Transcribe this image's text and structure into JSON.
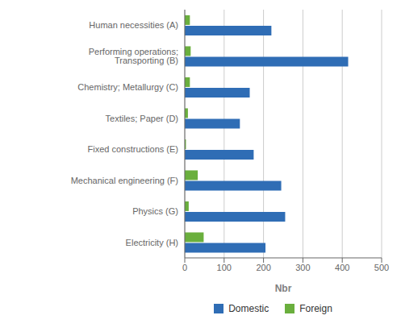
{
  "chart_data": {
    "type": "bar",
    "orientation": "horizontal",
    "categories": [
      "Human necessities (A)",
      "Performing operations; Transporting (B)",
      "Chemistry; Metallurgy  (C)",
      "Textiles; Paper (D)",
      "Fixed constructions (E)",
      "Mechanical engineering (F)",
      "Physics (G)",
      "Electricity (H)"
    ],
    "series": [
      {
        "name": "Domestic",
        "color": "#2F6DB5",
        "values": [
          220,
          415,
          165,
          140,
          175,
          245,
          255,
          205
        ]
      },
      {
        "name": "Foreign",
        "color": "#6AAF3D",
        "values": [
          13,
          15,
          13,
          8,
          3,
          33,
          10,
          48
        ]
      }
    ],
    "xlabel": "Nbr",
    "xlim": [
      0,
      500
    ],
    "xticks": [
      0,
      100,
      200,
      300,
      400,
      500
    ],
    "grid": true,
    "legend": "bottom"
  }
}
